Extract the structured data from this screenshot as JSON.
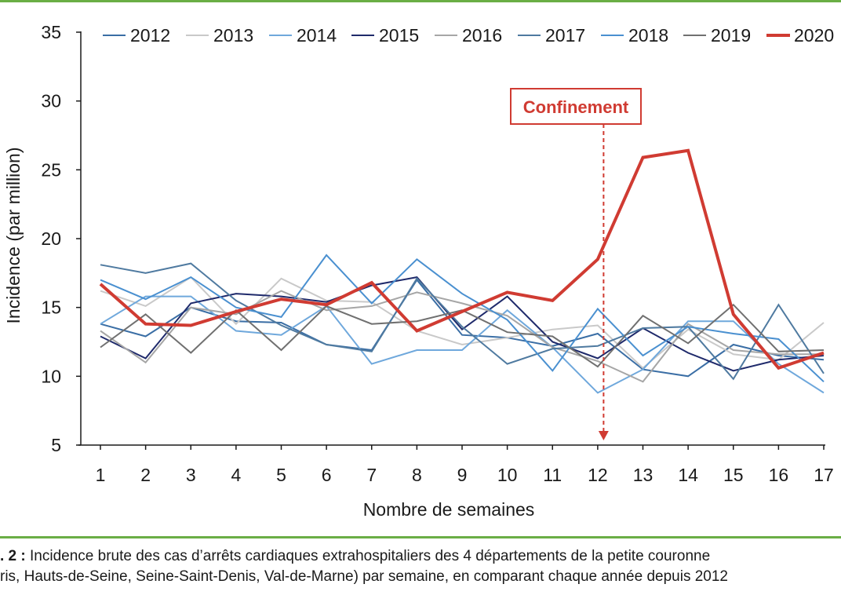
{
  "chart_data": {
    "type": "line",
    "xlabel": "Nombre de semaines",
    "ylabel": "Incidence (par million)",
    "x": [
      1,
      2,
      3,
      4,
      5,
      6,
      7,
      8,
      9,
      10,
      11,
      12,
      13,
      14,
      15,
      16,
      17
    ],
    "ylim": [
      5,
      35
    ],
    "yticks": [
      5,
      10,
      15,
      20,
      25,
      30,
      35
    ],
    "grid": false,
    "legend_position": "top",
    "series": [
      {
        "name": "2012",
        "color": "#3a6ea5",
        "values": [
          13.8,
          12.9,
          15.0,
          14.0,
          13.9,
          12.3,
          11.9,
          17.0,
          13.0,
          12.8,
          12.2,
          13.1,
          10.5,
          10.0,
          12.3,
          11.5,
          11.2
        ]
      },
      {
        "name": "2013",
        "color": "#c9c9c9",
        "values": [
          16.2,
          15.1,
          17.2,
          13.8,
          17.1,
          15.5,
          15.4,
          13.3,
          12.3,
          12.8,
          13.4,
          13.7,
          10.6,
          13.4,
          11.6,
          11.2,
          13.9
        ]
      },
      {
        "name": "2014",
        "color": "#6fa8dc",
        "values": [
          13.8,
          15.8,
          15.8,
          13.3,
          13.0,
          15.1,
          10.9,
          11.9,
          11.9,
          14.8,
          12.1,
          8.8,
          10.5,
          14.0,
          14.0,
          10.9,
          8.8
        ]
      },
      {
        "name": "2015",
        "color": "#1f2a6b",
        "values": [
          12.9,
          11.3,
          15.3,
          16.0,
          15.8,
          15.4,
          16.6,
          17.2,
          13.4,
          15.8,
          12.5,
          11.3,
          13.5,
          11.7,
          10.4,
          11.2,
          11.5
        ]
      },
      {
        "name": "2016",
        "color": "#a6a6a6",
        "values": [
          13.3,
          11.0,
          15.0,
          14.5,
          16.2,
          14.8,
          15.1,
          16.1,
          15.3,
          14.4,
          12.1,
          11.1,
          9.6,
          13.8,
          11.9,
          11.6,
          11.6
        ]
      },
      {
        "name": "2017",
        "color": "#4f7aa0",
        "values": [
          18.1,
          17.5,
          18.2,
          15.5,
          13.7,
          12.3,
          11.8,
          17.1,
          13.6,
          10.9,
          12.0,
          12.2,
          13.5,
          13.6,
          9.8,
          15.2,
          10.2
        ]
      },
      {
        "name": "2018",
        "color": "#4a90d0",
        "values": [
          17.0,
          15.6,
          17.2,
          15.0,
          14.3,
          18.8,
          15.3,
          18.5,
          16.0,
          14.1,
          10.4,
          14.9,
          11.5,
          13.6,
          13.1,
          12.7,
          9.6
        ]
      },
      {
        "name": "2019",
        "color": "#707070",
        "values": [
          12.1,
          14.5,
          11.7,
          14.8,
          11.9,
          15.1,
          13.8,
          14.0,
          14.8,
          13.2,
          12.9,
          10.7,
          14.4,
          12.4,
          15.2,
          11.8,
          11.9
        ]
      },
      {
        "name": "2020",
        "color": "#d03b32",
        "values": [
          16.7,
          13.8,
          13.7,
          14.7,
          15.6,
          15.2,
          16.8,
          13.3,
          14.7,
          16.1,
          15.5,
          18.5,
          25.9,
          26.4,
          14.5,
          10.6,
          11.7
        ]
      }
    ],
    "annotations": [
      {
        "text": "Confinement",
        "x": 12,
        "color": "#d03b32"
      }
    ]
  },
  "caption": {
    "line1_bold": ". 2 :",
    "line1_text": " Incidence brute des cas d’arrêts cardiaques extrahospitaliers des 4 départements de la petite couronne",
    "line2_text": "ris, Hauts-de-Seine, Seine-Saint-Denis, Val-de-Marne) par semaine, en comparant chaque année depuis 2012"
  }
}
